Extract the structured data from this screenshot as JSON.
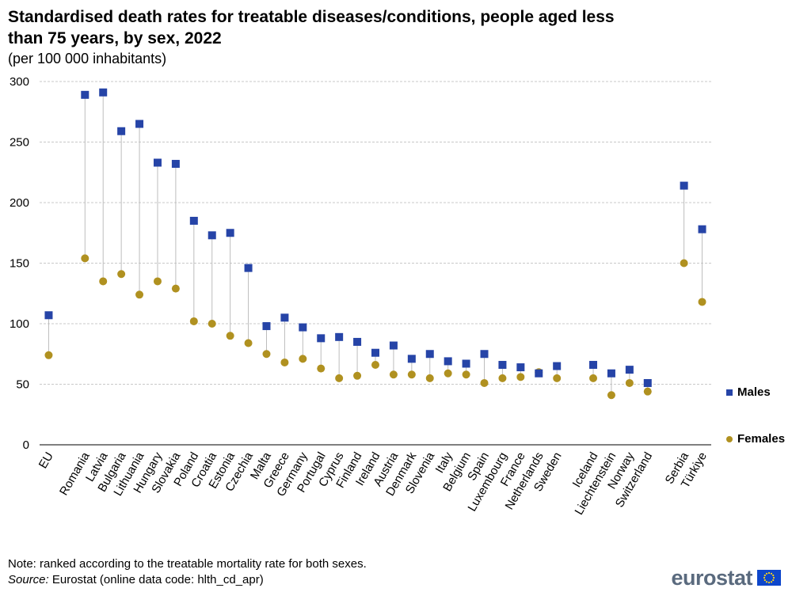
{
  "title": "Standardised death rates for treatable diseases/conditions, people aged less than 75 years, by sex, 2022",
  "subtitle": "(per 100 000 inhabitants)",
  "note": "Note: ranked according to the treatable mortality rate for both sexes.",
  "source_label": "Source:",
  "source_text": " Eurostat (online data code: hlth_cd_apr)",
  "logo_text": "eurostat",
  "colors": {
    "males": "#2644a7",
    "females": "#b09120",
    "stem": "#bdbdbd",
    "grid": "#c8c8c8"
  },
  "chart_data": {
    "type": "dot-plot",
    "title": "Standardised death rates for treatable diseases/conditions, people aged less than 75 years, by sex, 2022",
    "ylim": [
      0,
      300
    ],
    "yticks": [
      0,
      50,
      100,
      150,
      200,
      250,
      300
    ],
    "grid": true,
    "legend_position": "right",
    "categories": [
      "EU",
      "",
      "Romania",
      "Latvia",
      "Bulgaria",
      "Lithuania",
      "Hungary",
      "Slovakia",
      "Poland",
      "Croatia",
      "Estonia",
      "Czechia",
      "Malta",
      "Greece",
      "Germany",
      "Portugal",
      "Cyprus",
      "Finland",
      "Ireland",
      "Austria",
      "Denmark",
      "Slovenia",
      "Italy",
      "Belgium",
      "Spain",
      "Luxembourg",
      "France",
      "Netherlands",
      "Sweden",
      "",
      "Iceland",
      "Liechtenstein",
      "Norway",
      "Switzerland",
      "",
      "Serbia",
      "Türkiye"
    ],
    "series": [
      {
        "name": "Males",
        "values": [
          107,
          null,
          289,
          291,
          259,
          265,
          233,
          232,
          185,
          173,
          175,
          146,
          98,
          105,
          97,
          88,
          89,
          85,
          76,
          82,
          71,
          75,
          69,
          67,
          75,
          66,
          64,
          59,
          65,
          null,
          66,
          59,
          62,
          51,
          null,
          214,
          178
        ]
      },
      {
        "name": "Females",
        "values": [
          74,
          null,
          154,
          135,
          141,
          124,
          135,
          129,
          102,
          100,
          90,
          84,
          75,
          68,
          71,
          63,
          55,
          57,
          66,
          58,
          58,
          55,
          59,
          58,
          51,
          55,
          56,
          60,
          55,
          null,
          55,
          41,
          51,
          44,
          null,
          150,
          118
        ]
      }
    ]
  }
}
